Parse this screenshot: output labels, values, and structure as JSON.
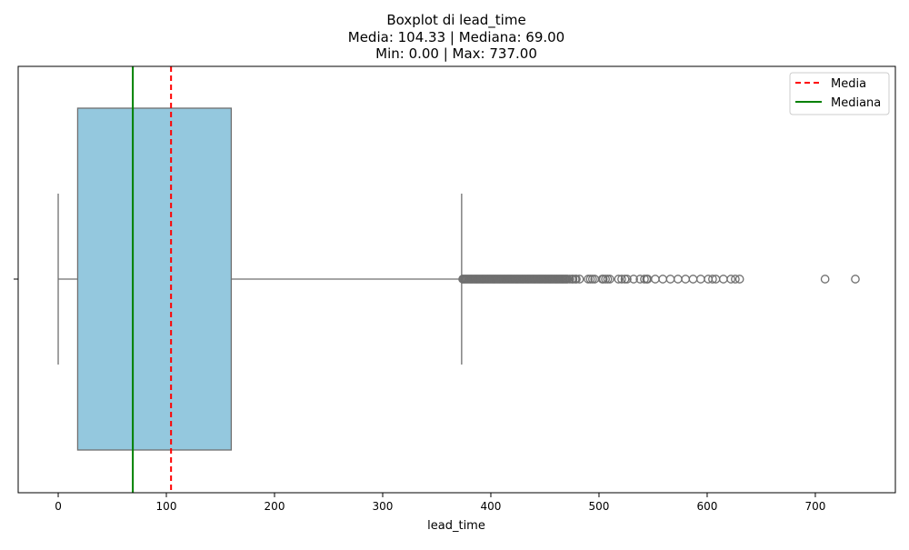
{
  "chart_data": {
    "type": "boxplot",
    "title": [
      "Boxplot di lead_time",
      "Media: 104.33 | Mediana: 69.00",
      "Min: 0.00 | Max: 737.00"
    ],
    "xlabel": "lead_time",
    "ylabel": "",
    "xlim": [
      -37,
      774
    ],
    "xticks": [
      0,
      100,
      200,
      300,
      400,
      500,
      600,
      700
    ],
    "xtick_labels": [
      "0",
      "100",
      "200",
      "300",
      "400",
      "500",
      "600",
      "700"
    ],
    "grid": false,
    "legend_position": "top-right",
    "box": {
      "min_whisker": 0,
      "q1": 18,
      "median": 69,
      "q3": 160,
      "max_whisker": 373,
      "fill_color": "#94c8de",
      "edge_color": "#6f6f6f"
    },
    "outliers": [
      374,
      375,
      376,
      377,
      378,
      379,
      380,
      381,
      382,
      383,
      384,
      385,
      386,
      387,
      388,
      389,
      390,
      391,
      392,
      393,
      394,
      395,
      396,
      397,
      398,
      399,
      400,
      401,
      402,
      403,
      404,
      405,
      406,
      407,
      408,
      409,
      410,
      411,
      412,
      413,
      414,
      415,
      416,
      417,
      418,
      419,
      420,
      421,
      422,
      423,
      424,
      425,
      426,
      427,
      428,
      429,
      430,
      431,
      432,
      433,
      434,
      435,
      436,
      437,
      438,
      439,
      440,
      441,
      442,
      443,
      444,
      445,
      446,
      447,
      448,
      449,
      450,
      451,
      452,
      453,
      454,
      455,
      456,
      457,
      458,
      459,
      460,
      461,
      462,
      463,
      464,
      465,
      466,
      467,
      468,
      469,
      470,
      471,
      473,
      475,
      476,
      478,
      479,
      482,
      490,
      492,
      494,
      496,
      503,
      504,
      506,
      508,
      510,
      518,
      521,
      524,
      526,
      532,
      538,
      542,
      544,
      545,
      552,
      559,
      566,
      573,
      580,
      587,
      594,
      601,
      605,
      608,
      615,
      622,
      626,
      630,
      709,
      737
    ],
    "reference_lines": [
      {
        "name": "Media",
        "value": 104.33,
        "color": "#ff0000",
        "style": "dashed"
      },
      {
        "name": "Mediana",
        "value": 69.0,
        "color": "#008000",
        "style": "solid"
      }
    ],
    "ytick_labels": [
      ""
    ]
  }
}
